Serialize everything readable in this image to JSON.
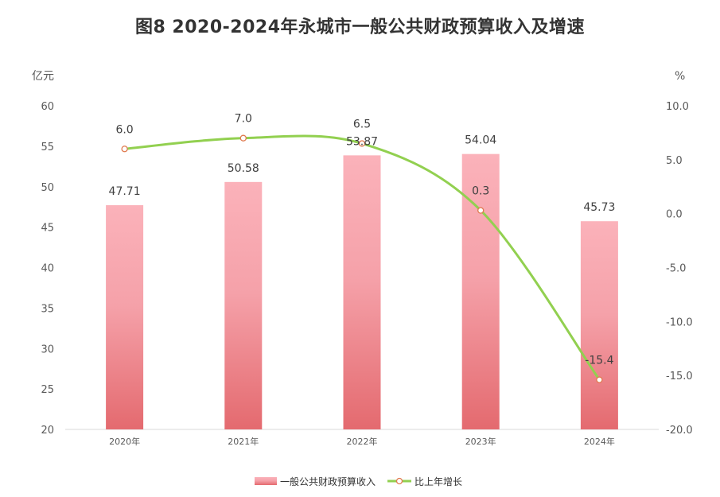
{
  "chart_data": {
    "type": "bar",
    "title": "图8  2020-2024年永城市一般公共财政预算收入及增速",
    "categories": [
      "2020年",
      "2021年",
      "2022年",
      "2023年",
      "2024年"
    ],
    "y_left": {
      "unit": "亿元",
      "min": 20,
      "max": 60,
      "step": 5,
      "ticks": [
        "20",
        "25",
        "30",
        "35",
        "40",
        "45",
        "50",
        "55",
        "60"
      ]
    },
    "y_right": {
      "unit": "%",
      "min": -20,
      "max": 10,
      "step": 5,
      "ticks": [
        "-20.0",
        "-15.0",
        "-10.0",
        "-5.0",
        "0.0",
        "5.0",
        "10.0"
      ]
    },
    "series": [
      {
        "name": "一般公共财政预算收入",
        "type": "bar",
        "axis": "left",
        "values": [
          47.71,
          50.58,
          53.87,
          54.04,
          45.73
        ],
        "labels": [
          "47.71",
          "50.58",
          "53.87",
          "54.04",
          "45.73"
        ]
      },
      {
        "name": "比上年增长",
        "type": "line",
        "axis": "right",
        "values": [
          6.0,
          7.0,
          6.5,
          0.3,
          -15.4
        ],
        "labels": [
          "6.0",
          "7.0",
          "6.5",
          "0.3",
          "-15.4"
        ]
      }
    ],
    "colors": {
      "bar_top": "#fbb2ba",
      "bar_bottom": "#e46a6f",
      "line": "#92d050",
      "marker_fill": "#ffffff",
      "marker_stroke": "#e07a4f"
    },
    "legend_position": "bottom",
    "grid": false
  }
}
